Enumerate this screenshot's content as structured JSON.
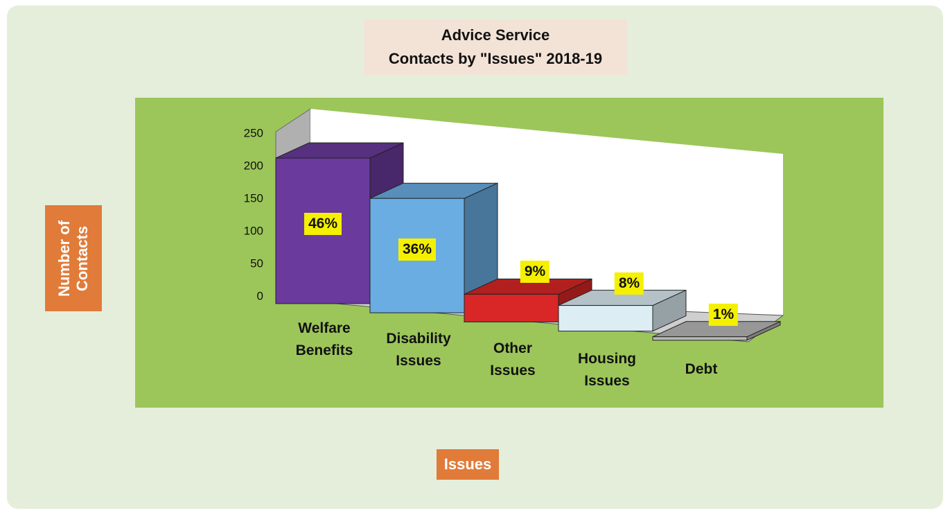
{
  "chart_data": {
    "type": "bar3d",
    "title": "Advice Service",
    "subtitle": "Contacts by \"Issues\" 2018-19",
    "y_label": "Number of Contacts",
    "x_label": "Issues",
    "categories": [
      "Welfare Benefits",
      "Disability Issues",
      "Other Issues",
      "Housing Issues",
      "Debt"
    ],
    "values": [
      210,
      165,
      40,
      37,
      5
    ],
    "share_labels": [
      "46%",
      "36%",
      "9%",
      "8%",
      "1%"
    ],
    "colors": [
      "#6a3a9c",
      "#6aade3",
      "#d92626",
      "#dcedf4",
      "#b8b8b8"
    ],
    "ylim": [
      0,
      250
    ],
    "yticks": [
      0,
      50,
      100,
      150,
      200,
      250
    ]
  }
}
